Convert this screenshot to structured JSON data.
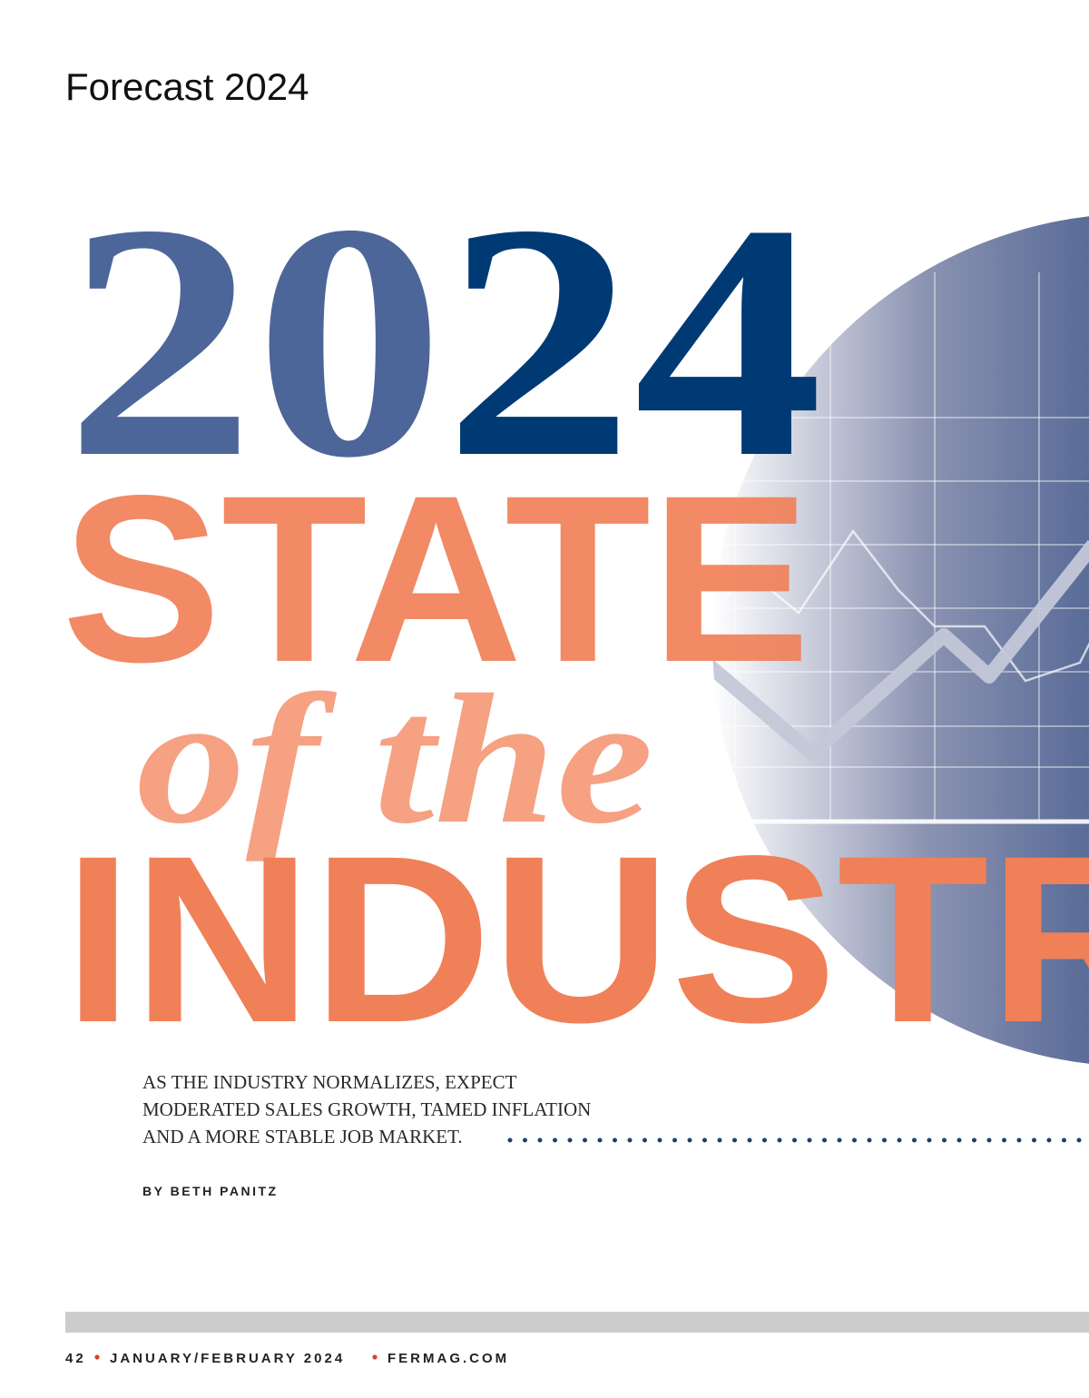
{
  "header": {
    "section": "Forecast 2024"
  },
  "headline": {
    "year_parts": [
      "20",
      "24"
    ],
    "line1": "STATE",
    "line2": "of the",
    "line3": "INDUSTRY"
  },
  "deck": {
    "lines": [
      "AS THE INDUSTRY NORMALIZES, EXPECT",
      "MODERATED SALES GROWTH, TAMED INFLATION",
      "AND A MORE STABLE JOB MARKET."
    ]
  },
  "byline": "BY BETH PANITZ",
  "footer": {
    "page": "42",
    "issue": "JANUARY/FEBRUARY 2024",
    "site": "FERMAG.COM"
  }
}
